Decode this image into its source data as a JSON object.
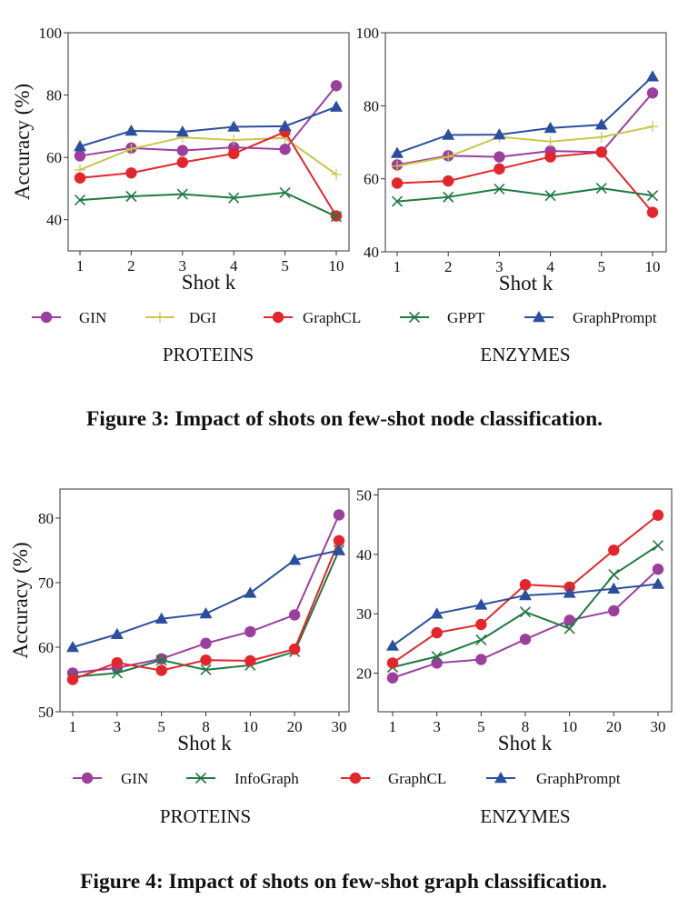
{
  "colors": {
    "GIN": "#9b3f9e",
    "DGI": "#c8c84a",
    "GraphCL": "#e3262c",
    "GPPT": "#1e7a43",
    "InfoGraph": "#1e7a43",
    "GraphPrompt": "#2b4f9e"
  },
  "markers": {
    "GIN": "circle",
    "DGI": "plus",
    "GraphCL": "circle",
    "GPPT": "x",
    "InfoGraph": "x",
    "GraphPrompt": "triangle"
  },
  "figure3": {
    "legend": [
      "GIN",
      "DGI",
      "GraphCL",
      "GPPT",
      "GraphPrompt"
    ],
    "caption": "Figure 3: Impact of shots on few-shot node classification."
  },
  "figure4": {
    "legend": [
      "GIN",
      "InfoGraph",
      "GraphCL",
      "GraphPrompt"
    ],
    "caption": "Figure 4: Impact of shots on few-shot graph classification."
  },
  "chart_data": [
    {
      "type": "line",
      "subtitle": "PROTEINS",
      "xlabel": "Shot k",
      "ylabel": "Accuracy (%)",
      "categories": [
        "1",
        "2",
        "3",
        "4",
        "5",
        "10"
      ],
      "ylim": [
        30,
        100
      ],
      "yticks": [
        40,
        60,
        80,
        100
      ],
      "grid": false,
      "series": [
        {
          "name": "GIN",
          "values": [
            60.5,
            63,
            62.2,
            63.2,
            62.6,
            83
          ]
        },
        {
          "name": "DGI",
          "values": [
            56,
            62.7,
            66.4,
            65.6,
            66.2,
            54.5
          ]
        },
        {
          "name": "GraphCL",
          "values": [
            53.4,
            55,
            58.4,
            61.2,
            68.2,
            41.2
          ]
        },
        {
          "name": "GPPT",
          "values": [
            46.3,
            47.5,
            48.2,
            47,
            48.7,
            41
          ]
        },
        {
          "name": "GraphPrompt",
          "values": [
            63.5,
            68.5,
            68.2,
            69.8,
            70,
            76.2
          ]
        }
      ]
    },
    {
      "type": "line",
      "subtitle": "ENZYMES",
      "xlabel": "Shot k",
      "ylabel": "",
      "categories": [
        "1",
        "2",
        "3",
        "4",
        "5",
        "10"
      ],
      "ylim": [
        40,
        100
      ],
      "yticks": [
        40,
        60,
        80,
        100
      ],
      "grid": false,
      "series": [
        {
          "name": "GIN",
          "values": [
            63.8,
            66.3,
            66,
            67.6,
            67.3,
            83.5
          ]
        },
        {
          "name": "DGI",
          "values": [
            63.5,
            66,
            71.5,
            70.2,
            71.4,
            74.3
          ]
        },
        {
          "name": "GraphCL",
          "values": [
            58.8,
            59.4,
            62.7,
            66,
            67.3,
            50.8
          ]
        },
        {
          "name": "GPPT",
          "values": [
            53.8,
            55,
            57.2,
            55.4,
            57.4,
            55.4
          ]
        },
        {
          "name": "GraphPrompt",
          "values": [
            67,
            72,
            72.1,
            73.9,
            74.8,
            88
          ]
        }
      ]
    },
    {
      "type": "line",
      "subtitle": "PROTEINS",
      "xlabel": "Shot k",
      "ylabel": "Accuracy (%)",
      "categories": [
        "1",
        "3",
        "5",
        "8",
        "10",
        "20",
        "30"
      ],
      "ylim": [
        50,
        84.5
      ],
      "yticks": [
        50,
        60,
        70,
        80
      ],
      "grid": false,
      "series": [
        {
          "name": "GIN",
          "values": [
            56,
            56.8,
            58.2,
            60.6,
            62.4,
            65,
            80.5
          ]
        },
        {
          "name": "InfoGraph",
          "values": [
            55.4,
            56,
            58,
            56.5,
            57.2,
            59.3,
            75
          ]
        },
        {
          "name": "GraphCL",
          "values": [
            55,
            57.6,
            56.4,
            58,
            57.9,
            59.7,
            76.5
          ]
        },
        {
          "name": "GraphPrompt",
          "values": [
            60,
            62,
            64.4,
            65.2,
            68.4,
            73.5,
            75
          ]
        }
      ]
    },
    {
      "type": "line",
      "subtitle": "ENZYMES",
      "xlabel": "Shot k",
      "ylabel": "",
      "categories": [
        "1",
        "3",
        "5",
        "8",
        "10",
        "20",
        "30"
      ],
      "ylim": [
        13.5,
        51
      ],
      "yticks": [
        20,
        30,
        40,
        50
      ],
      "grid": false,
      "series": [
        {
          "name": "GIN",
          "values": [
            19.2,
            21.7,
            22.3,
            25.7,
            28.9,
            30.5,
            37.5
          ]
        },
        {
          "name": "InfoGraph",
          "values": [
            21,
            22.8,
            25.6,
            30.3,
            27.5,
            36.6,
            41.5
          ]
        },
        {
          "name": "GraphCL",
          "values": [
            21.7,
            26.8,
            28.2,
            34.9,
            34.5,
            40.7,
            46.6
          ]
        },
        {
          "name": "GraphPrompt",
          "values": [
            24.6,
            30,
            31.5,
            33.1,
            33.5,
            34.2,
            35
          ]
        }
      ]
    }
  ]
}
